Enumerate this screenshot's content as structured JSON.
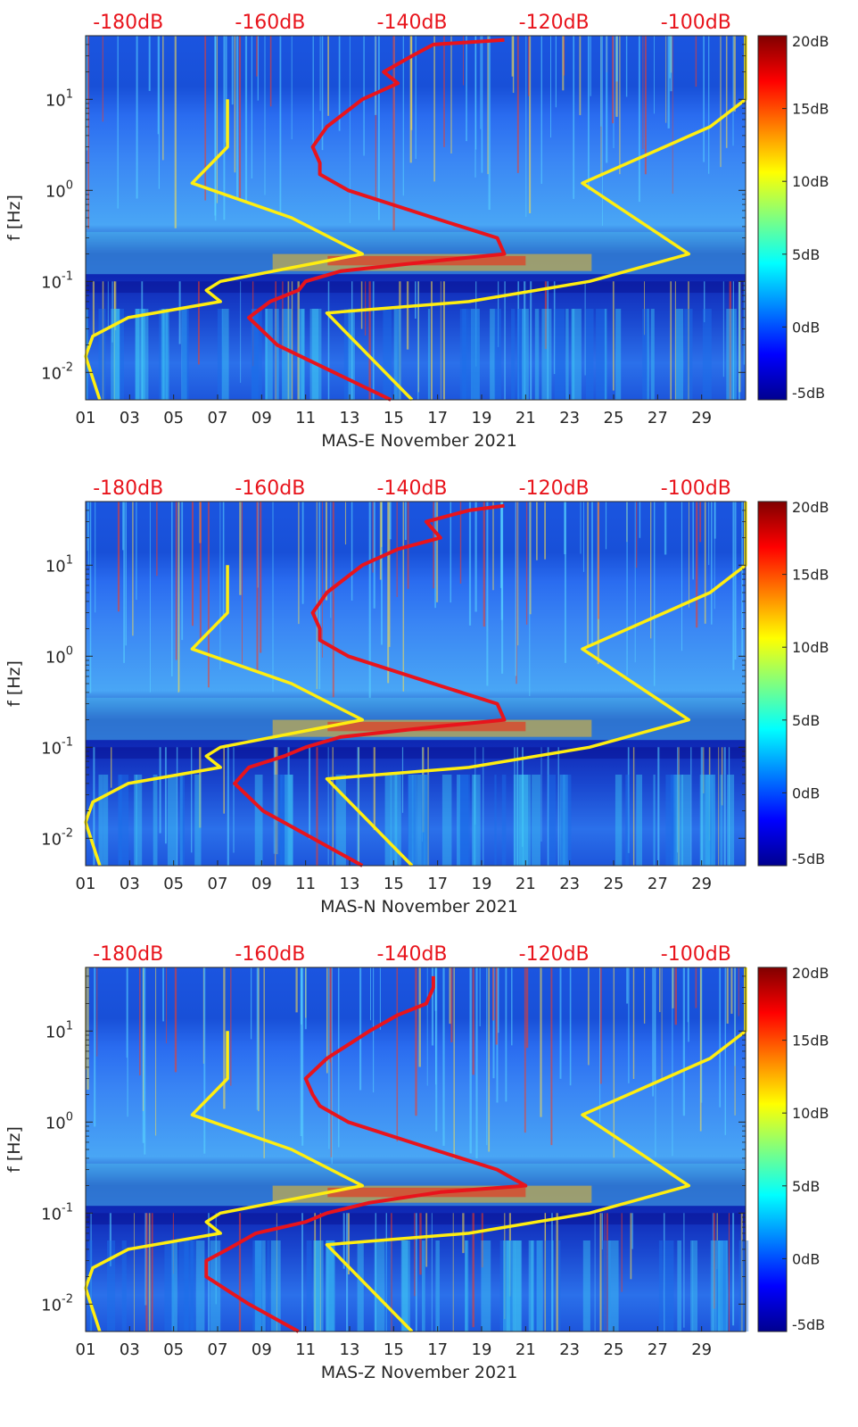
{
  "colors": {
    "psd_curve": "#e8141c",
    "noise_model": "#ffee10",
    "axis_text": "#262626",
    "top_db_labels": "#e8141c"
  },
  "chart_data": [
    {
      "type": "heatmap",
      "title": "MAS-E November 2021",
      "xlabel": "MAS-E November 2021",
      "ylabel": "f [Hz]",
      "x_ticks": [
        "01",
        "03",
        "05",
        "07",
        "09",
        "11",
        "13",
        "15",
        "17",
        "19",
        "21",
        "23",
        "25",
        "27",
        "29"
      ],
      "x_range_days": [
        1,
        31
      ],
      "y_scale": "log",
      "y_range_hz": [
        0.005,
        50
      ],
      "y_ticks": [
        "10^-2",
        "10^-1",
        "10^0",
        "10^1"
      ],
      "colorbar_ticks": [
        "-5dB",
        "0dB",
        "5dB",
        "10dB",
        "15dB",
        "20dB"
      ],
      "colorbar_range_db": [
        -5,
        20
      ],
      "top_axis_labels": [
        "-180dB",
        "-160dB",
        "-140dB",
        "-120dB",
        "-100dB"
      ],
      "top_axis_range_db": [
        -186,
        -93
      ],
      "series": [
        {
          "name": "PSD",
          "freq_hz": [
            0.005,
            0.01,
            0.02,
            0.04,
            0.06,
            0.08,
            0.1,
            0.13,
            0.17,
            0.2,
            0.3,
            0.5,
            1,
            1.5,
            2,
            3,
            5,
            10,
            15,
            20,
            30,
            40,
            45
          ],
          "db": [
            -143,
            -151,
            -159,
            -163,
            -160,
            -156,
            -155,
            -150,
            -136,
            -127,
            -128,
            -137,
            -149,
            -153,
            -153,
            -154,
            -152,
            -147,
            -142,
            -144,
            -140,
            -137,
            -127
          ]
        },
        {
          "name": "Noise model low",
          "freq_hz": [
            0.005,
            0.015,
            0.025,
            0.04,
            0.06,
            0.08,
            0.1,
            0.2,
            0.5,
            1.2,
            3,
            10
          ],
          "db": [
            -184,
            -186,
            -185,
            -180,
            -167,
            -169,
            -167,
            -147,
            -157,
            -171,
            -166,
            -166
          ]
        },
        {
          "name": "Noise model high",
          "freq_hz": [
            0.005,
            0.045,
            0.06,
            0.1,
            0.2,
            1.2,
            5,
            10,
            50
          ],
          "db": [
            -140,
            -152,
            -132,
            -115,
            -101,
            -116,
            -98,
            -93,
            -93
          ]
        }
      ]
    },
    {
      "type": "heatmap",
      "title": "MAS-N November 2021",
      "xlabel": "MAS-N November 2021",
      "ylabel": "f [Hz]",
      "x_ticks": [
        "01",
        "03",
        "05",
        "07",
        "09",
        "11",
        "13",
        "15",
        "17",
        "19",
        "21",
        "23",
        "25",
        "27",
        "29"
      ],
      "x_range_days": [
        1,
        31
      ],
      "y_scale": "log",
      "y_range_hz": [
        0.005,
        50
      ],
      "y_ticks": [
        "10^-2",
        "10^-1",
        "10^0",
        "10^1"
      ],
      "colorbar_ticks": [
        "-5dB",
        "0dB",
        "5dB",
        "10dB",
        "15dB",
        "20dB"
      ],
      "colorbar_range_db": [
        -5,
        20
      ],
      "top_axis_labels": [
        "-180dB",
        "-160dB",
        "-140dB",
        "-120dB",
        "-100dB"
      ],
      "top_axis_range_db": [
        -186,
        -93
      ],
      "series": [
        {
          "name": "PSD",
          "freq_hz": [
            0.005,
            0.01,
            0.02,
            0.04,
            0.06,
            0.08,
            0.1,
            0.13,
            0.17,
            0.2,
            0.3,
            0.5,
            1,
            1.5,
            2,
            3,
            5,
            10,
            15,
            20,
            30,
            40,
            45
          ],
          "db": [
            -147,
            -154,
            -161,
            -165,
            -163,
            -158,
            -155,
            -150,
            -136,
            -127,
            -128,
            -137,
            -149,
            -153,
            -153,
            -154,
            -152,
            -147,
            -142,
            -136,
            -138,
            -132,
            -127
          ]
        },
        {
          "name": "Noise model low",
          "freq_hz": [
            0.005,
            0.015,
            0.025,
            0.04,
            0.06,
            0.08,
            0.1,
            0.2,
            0.5,
            1.2,
            3,
            10
          ],
          "db": [
            -184,
            -186,
            -185,
            -180,
            -167,
            -169,
            -167,
            -147,
            -157,
            -171,
            -166,
            -166
          ]
        },
        {
          "name": "Noise model high",
          "freq_hz": [
            0.005,
            0.045,
            0.06,
            0.1,
            0.2,
            1.2,
            5,
            10,
            50
          ],
          "db": [
            -140,
            -152,
            -132,
            -115,
            -101,
            -116,
            -98,
            -93,
            -93
          ]
        }
      ]
    },
    {
      "type": "heatmap",
      "title": "MAS-Z November 2021",
      "xlabel": "MAS-Z November 2021",
      "ylabel": "f [Hz]",
      "x_ticks": [
        "01",
        "03",
        "05",
        "07",
        "09",
        "11",
        "13",
        "15",
        "17",
        "19",
        "21",
        "23",
        "25",
        "27",
        "29"
      ],
      "x_range_days": [
        1,
        31
      ],
      "y_scale": "log",
      "y_range_hz": [
        0.005,
        50
      ],
      "y_ticks": [
        "10^-2",
        "10^-1",
        "10^0",
        "10^1"
      ],
      "colorbar_ticks": [
        "-5dB",
        "0dB",
        "5dB",
        "10dB",
        "15dB",
        "20dB"
      ],
      "colorbar_range_db": [
        -5,
        20
      ],
      "top_axis_labels": [
        "-180dB",
        "-160dB",
        "-140dB",
        "-120dB",
        "-100dB"
      ],
      "top_axis_range_db": [
        -186,
        -93
      ],
      "series": [
        {
          "name": "PSD",
          "freq_hz": [
            0.005,
            0.01,
            0.02,
            0.03,
            0.04,
            0.06,
            0.08,
            0.1,
            0.13,
            0.17,
            0.2,
            0.3,
            0.5,
            1,
            1.5,
            2,
            3,
            5,
            10,
            15,
            20,
            30,
            40
          ],
          "db": [
            -156,
            -163,
            -169,
            -169,
            -166,
            -162,
            -155,
            -152,
            -146,
            -136,
            -124,
            -128,
            -137,
            -149,
            -153,
            -154,
            -155,
            -152,
            -146,
            -142,
            -138,
            -137,
            -137
          ]
        },
        {
          "name": "Noise model low",
          "freq_hz": [
            0.005,
            0.015,
            0.025,
            0.04,
            0.06,
            0.08,
            0.1,
            0.2,
            0.5,
            1.2,
            3,
            10
          ],
          "db": [
            -184,
            -186,
            -185,
            -180,
            -167,
            -169,
            -167,
            -147,
            -157,
            -171,
            -166,
            -166
          ]
        },
        {
          "name": "Noise model high",
          "freq_hz": [
            0.005,
            0.045,
            0.06,
            0.1,
            0.2,
            1.2,
            5,
            10,
            50
          ],
          "db": [
            -140,
            -152,
            -132,
            -115,
            -101,
            -116,
            -98,
            -93,
            -93
          ]
        }
      ]
    }
  ]
}
